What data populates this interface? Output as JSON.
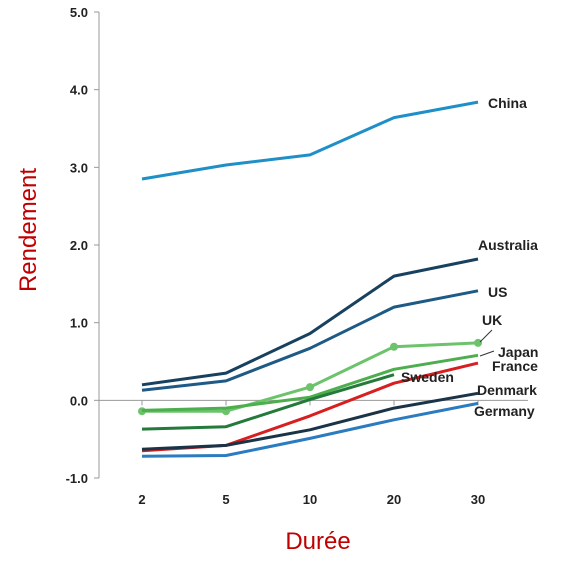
{
  "chart_data": {
    "type": "line",
    "title": "",
    "xlabel": "Durée",
    "ylabel": "Rendement",
    "categories": [
      "2",
      "5",
      "10",
      "20",
      "30"
    ],
    "ylim": [
      -1.0,
      5.0
    ],
    "yticks": [
      "5.0",
      "4.0",
      "3.0",
      "2.0",
      "1.0",
      "0.0",
      "-1.0"
    ],
    "grid": false,
    "legend": "direct labels at line ends",
    "series": [
      {
        "name": "China",
        "values": [
          2.85,
          3.03,
          3.16,
          3.64,
          3.84
        ],
        "color": "#1f8fc8",
        "markers": false
      },
      {
        "name": "Australia",
        "values": [
          0.2,
          0.35,
          0.86,
          1.6,
          1.82
        ],
        "color": "#17415f",
        "markers": false
      },
      {
        "name": "US",
        "values": [
          0.13,
          0.25,
          0.67,
          1.2,
          1.41
        ],
        "color": "#1e5a86",
        "markers": false
      },
      {
        "name": "UK",
        "values": [
          -0.14,
          -0.14,
          0.17,
          0.69,
          0.74
        ],
        "color": "#6cc36c",
        "markers": true
      },
      {
        "name": "Japan",
        "values": [
          -0.13,
          -0.1,
          0.04,
          0.4,
          0.58
        ],
        "color": "#4cae4c",
        "markers": false
      },
      {
        "name": "Sweden",
        "values": [
          -0.37,
          -0.34,
          0.01,
          0.33,
          null
        ],
        "color": "#237a3a",
        "markers": false
      },
      {
        "name": "France",
        "values": [
          -0.65,
          -0.58,
          -0.2,
          0.22,
          0.48
        ],
        "color": "#d81e1e",
        "markers": false
      },
      {
        "name": "Denmark",
        "values": [
          -0.63,
          -0.58,
          -0.38,
          -0.1,
          0.09
        ],
        "color": "#1a3347",
        "markers": false
      },
      {
        "name": "Germany",
        "values": [
          -0.72,
          -0.71,
          -0.49,
          -0.25,
          -0.04
        ],
        "color": "#2a7bbf",
        "markers": false
      }
    ]
  }
}
